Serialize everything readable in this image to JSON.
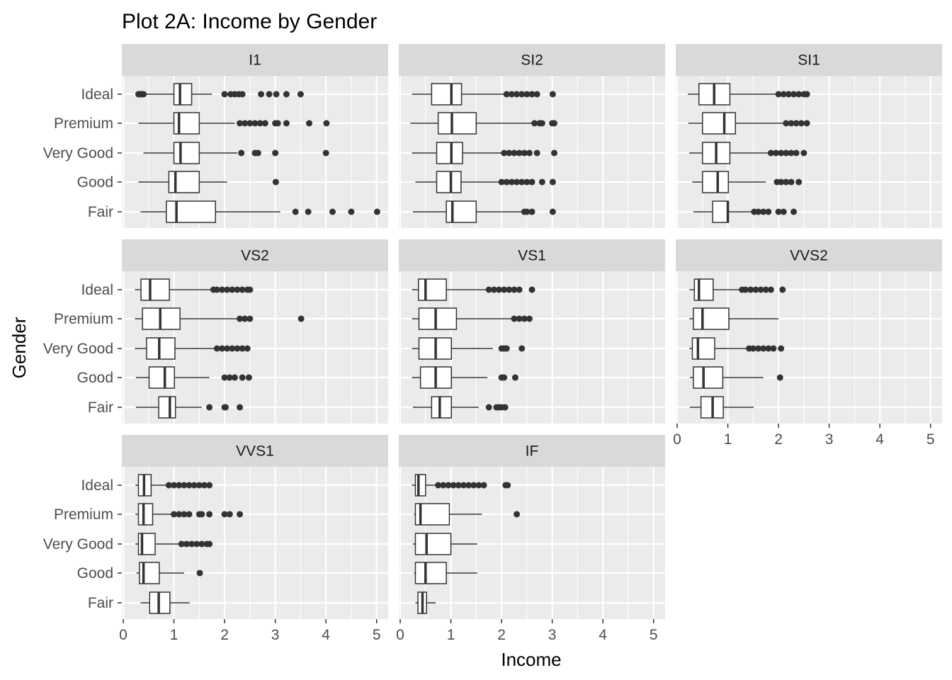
{
  "chart_data": {
    "type": "boxplot",
    "title": "Plot 2A: Income by Gender",
    "xlabel": "Income",
    "ylabel": "Gender",
    "categories": [
      "Ideal",
      "Premium",
      "Very Good",
      "Good",
      "Fair"
    ],
    "xlim": [
      0,
      5.2
    ],
    "x_ticks": [
      0,
      1,
      2,
      3,
      4,
      5
    ],
    "grid": true,
    "colors": {
      "panel_bg": "#ebebeb",
      "strip_bg": "#d9d9d9",
      "grid": "#ffffff",
      "box_fill": "#ffffff",
      "box_line": "#333333",
      "outlier": "#333333"
    },
    "facets": [
      {
        "name": "I1",
        "boxes": [
          {
            "category": "Ideal",
            "min": 0.45,
            "q1": 1.0,
            "median": 1.12,
            "q3": 1.35,
            "max": 1.75,
            "outliers": [
              0.3,
              0.33,
              0.36,
              0.4,
              2.0,
              2.12,
              2.2,
              2.28,
              2.35,
              2.72,
              2.88,
              3.02,
              3.22,
              3.5
            ]
          },
          {
            "category": "Premium",
            "min": 0.3,
            "q1": 1.0,
            "median": 1.1,
            "q3": 1.5,
            "max": 2.2,
            "outliers": [
              2.3,
              2.4,
              2.5,
              2.6,
              2.7,
              2.8,
              3.0,
              3.05,
              3.22,
              3.67,
              4.01
            ]
          },
          {
            "category": "Very Good",
            "min": 0.4,
            "q1": 1.0,
            "median": 1.13,
            "q3": 1.5,
            "max": 2.25,
            "outliers": [
              2.33,
              2.6,
              2.66,
              3.0,
              4.0
            ]
          },
          {
            "category": "Good",
            "min": 0.3,
            "q1": 0.9,
            "median": 1.03,
            "q3": 1.5,
            "max": 2.05,
            "outliers": [
              3.01
            ]
          },
          {
            "category": "Fair",
            "min": 0.34,
            "q1": 0.85,
            "median": 1.05,
            "q3": 1.82,
            "max": 3.1,
            "outliers": [
              3.4,
              3.65,
              4.13,
              4.5,
              5.01
            ]
          }
        ]
      },
      {
        "name": "SI2",
        "boxes": [
          {
            "category": "Ideal",
            "min": 0.23,
            "q1": 0.62,
            "median": 1.01,
            "q3": 1.21,
            "max": 2.05,
            "outliers": [
              2.1,
              2.2,
              2.3,
              2.4,
              2.5,
              2.6,
              2.7,
              3.01
            ]
          },
          {
            "category": "Premium",
            "min": 0.2,
            "q1": 0.75,
            "median": 1.02,
            "q3": 1.5,
            "max": 2.6,
            "outliers": [
              2.65,
              2.75,
              2.8,
              3.0,
              3.04
            ]
          },
          {
            "category": "Very Good",
            "min": 0.23,
            "q1": 0.72,
            "median": 1.01,
            "q3": 1.23,
            "max": 2.0,
            "outliers": [
              2.05,
              2.15,
              2.25,
              2.35,
              2.45,
              2.55,
              2.7,
              3.04
            ]
          },
          {
            "category": "Good",
            "min": 0.3,
            "q1": 0.72,
            "median": 1.0,
            "q3": 1.2,
            "max": 1.96,
            "outliers": [
              2.0,
              2.1,
              2.2,
              2.3,
              2.4,
              2.5,
              2.6,
              2.8,
              3.01
            ]
          },
          {
            "category": "Fair",
            "min": 0.25,
            "q1": 0.91,
            "median": 1.03,
            "q3": 1.5,
            "max": 2.4,
            "outliers": [
              2.45,
              2.5,
              2.6,
              3.01
            ]
          }
        ]
      },
      {
        "name": "SI1",
        "boxes": [
          {
            "category": "Ideal",
            "min": 0.21,
            "q1": 0.43,
            "median": 0.73,
            "q3": 1.04,
            "max": 1.95,
            "outliers": [
              2.0,
              2.1,
              2.2,
              2.3,
              2.4,
              2.5,
              2.56
            ]
          },
          {
            "category": "Premium",
            "min": 0.22,
            "q1": 0.5,
            "median": 0.93,
            "q3": 1.15,
            "max": 2.1,
            "outliers": [
              2.15,
              2.25,
              2.35,
              2.45,
              2.56
            ]
          },
          {
            "category": "Very Good",
            "min": 0.24,
            "q1": 0.5,
            "median": 0.77,
            "q3": 1.04,
            "max": 1.8,
            "outliers": [
              1.85,
              1.95,
              2.05,
              2.15,
              2.25,
              2.35,
              2.5
            ]
          },
          {
            "category": "Good",
            "min": 0.3,
            "q1": 0.5,
            "median": 0.8,
            "q3": 1.01,
            "max": 1.75,
            "outliers": [
              1.97,
              2.05,
              2.15,
              2.25,
              2.4
            ]
          },
          {
            "category": "Fair",
            "min": 0.32,
            "q1": 0.7,
            "median": 1.0,
            "q3": 1.01,
            "max": 1.5,
            "outliers": [
              1.52,
              1.6,
              1.7,
              1.8,
              2.0,
              2.1,
              2.3
            ]
          }
        ]
      },
      {
        "name": "VS2",
        "boxes": [
          {
            "category": "Ideal",
            "min": 0.23,
            "q1": 0.35,
            "median": 0.53,
            "q3": 0.91,
            "max": 1.75,
            "outliers": [
              1.78,
              1.85,
              1.95,
              2.05,
              2.15,
              2.25,
              2.35,
              2.45,
              2.5
            ]
          },
          {
            "category": "Premium",
            "min": 0.23,
            "q1": 0.38,
            "median": 0.73,
            "q3": 1.12,
            "max": 2.25,
            "outliers": [
              2.3,
              2.4,
              2.5,
              3.51
            ]
          },
          {
            "category": "Very Good",
            "min": 0.23,
            "q1": 0.46,
            "median": 0.71,
            "q3": 1.02,
            "max": 1.8,
            "outliers": [
              1.85,
              1.95,
              2.05,
              2.15,
              2.25,
              2.35,
              2.45
            ]
          },
          {
            "category": "Good",
            "min": 0.25,
            "q1": 0.51,
            "median": 0.82,
            "q3": 1.01,
            "max": 1.7,
            "outliers": [
              2.0,
              2.1,
              2.2,
              2.35,
              2.48
            ]
          },
          {
            "category": "Fair",
            "min": 0.25,
            "q1": 0.7,
            "median": 0.92,
            "q3": 1.03,
            "max": 1.55,
            "outliers": [
              1.7,
              2.0,
              2.02,
              2.3
            ]
          }
        ]
      },
      {
        "name": "VS1",
        "boxes": [
          {
            "category": "Ideal",
            "min": 0.23,
            "q1": 0.36,
            "median": 0.5,
            "q3": 0.91,
            "max": 1.7,
            "outliers": [
              1.75,
              1.85,
              1.95,
              2.05,
              2.15,
              2.25,
              2.35,
              2.6
            ]
          },
          {
            "category": "Premium",
            "min": 0.23,
            "q1": 0.37,
            "median": 0.7,
            "q3": 1.11,
            "max": 2.2,
            "outliers": [
              2.25,
              2.35,
              2.45,
              2.55
            ]
          },
          {
            "category": "Very Good",
            "min": 0.23,
            "q1": 0.37,
            "median": 0.7,
            "q3": 1.01,
            "max": 1.83,
            "outliers": [
              2.0,
              2.05,
              2.1,
              2.4
            ]
          },
          {
            "category": "Good",
            "min": 0.23,
            "q1": 0.4,
            "median": 0.7,
            "q3": 1.01,
            "max": 1.72,
            "outliers": [
              2.0,
              2.05,
              2.27
            ]
          },
          {
            "category": "Fair",
            "min": 0.25,
            "q1": 0.62,
            "median": 0.78,
            "q3": 1.01,
            "max": 1.55,
            "outliers": [
              1.75,
              1.9,
              1.95,
              2.0,
              2.07
            ]
          }
        ]
      },
      {
        "name": "VVS2",
        "boxes": [
          {
            "category": "Ideal",
            "min": 0.24,
            "q1": 0.34,
            "median": 0.43,
            "q3": 0.71,
            "max": 1.25,
            "outliers": [
              1.28,
              1.35,
              1.45,
              1.55,
              1.65,
              1.75,
              1.85,
              2.08
            ]
          },
          {
            "category": "Premium",
            "min": 0.24,
            "q1": 0.32,
            "median": 0.5,
            "q3": 1.02,
            "max": 2.0,
            "outliers": []
          },
          {
            "category": "Very Good",
            "min": 0.24,
            "q1": 0.3,
            "median": 0.41,
            "q3": 0.74,
            "max": 1.38,
            "outliers": [
              1.42,
              1.5,
              1.6,
              1.7,
              1.8,
              1.9,
              2.05
            ]
          },
          {
            "category": "Good",
            "min": 0.25,
            "q1": 0.32,
            "median": 0.52,
            "q3": 0.9,
            "max": 1.7,
            "outliers": [
              2.03
            ]
          },
          {
            "category": "Fair",
            "min": 0.25,
            "q1": 0.47,
            "median": 0.7,
            "q3": 0.91,
            "max": 1.51,
            "outliers": []
          }
        ]
      },
      {
        "name": "VVS1",
        "boxes": [
          {
            "category": "Ideal",
            "min": 0.24,
            "q1": 0.3,
            "median": 0.41,
            "q3": 0.55,
            "max": 0.85,
            "outliers": [
              0.9,
              1.0,
              1.1,
              1.2,
              1.3,
              1.4,
              1.5,
              1.6,
              1.7
            ]
          },
          {
            "category": "Premium",
            "min": 0.24,
            "q1": 0.3,
            "median": 0.4,
            "q3": 0.58,
            "max": 0.95,
            "outliers": [
              1.0,
              1.1,
              1.2,
              1.3,
              1.5,
              1.55,
              1.7,
              2.0,
              2.1,
              2.3
            ]
          },
          {
            "category": "Very Good",
            "min": 0.24,
            "q1": 0.3,
            "median": 0.37,
            "q3": 0.63,
            "max": 1.1,
            "outliers": [
              1.15,
              1.25,
              1.35,
              1.45,
              1.55,
              1.65,
              1.7
            ]
          },
          {
            "category": "Good",
            "min": 0.26,
            "q1": 0.32,
            "median": 0.4,
            "q3": 0.71,
            "max": 1.2,
            "outliers": [
              1.51
            ]
          },
          {
            "category": "Fair",
            "min": 0.34,
            "q1": 0.52,
            "median": 0.7,
            "q3": 0.92,
            "max": 1.31,
            "outliers": []
          }
        ]
      },
      {
        "name": "IF",
        "boxes": [
          {
            "category": "Ideal",
            "min": 0.23,
            "q1": 0.3,
            "median": 0.36,
            "q3": 0.5,
            "max": 0.7,
            "outliers": [
              0.75,
              0.85,
              0.95,
              1.05,
              1.15,
              1.25,
              1.35,
              1.45,
              1.55,
              1.65,
              2.08,
              2.12
            ]
          },
          {
            "category": "Premium",
            "min": 0.27,
            "q1": 0.3,
            "median": 0.4,
            "q3": 0.97,
            "max": 1.61,
            "outliers": [
              2.3
            ]
          },
          {
            "category": "Very Good",
            "min": 0.25,
            "q1": 0.3,
            "median": 0.52,
            "q3": 1.0,
            "max": 1.52,
            "outliers": []
          },
          {
            "category": "Good",
            "min": 0.27,
            "q1": 0.3,
            "median": 0.5,
            "q3": 0.91,
            "max": 1.52,
            "outliers": []
          },
          {
            "category": "Fair",
            "min": 0.3,
            "q1": 0.35,
            "median": 0.44,
            "q3": 0.52,
            "max": 0.7,
            "outliers": []
          }
        ]
      }
    ]
  }
}
